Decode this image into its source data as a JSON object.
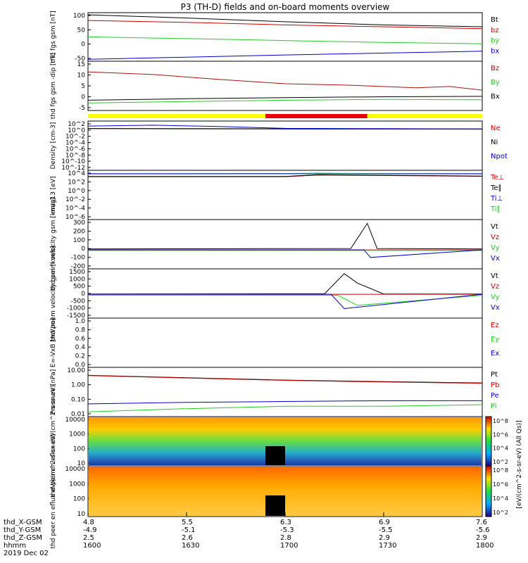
{
  "title": "P3 (TH-D) fields and on-board moments overview",
  "colors": {
    "black": "#000000",
    "red": "#cc0000",
    "green": "#22cc22",
    "blue": "#0000cc",
    "darkred": "#aa1111",
    "yellow": "#ffff00",
    "ok_red": "#ee0000"
  },
  "ephemeris": {
    "labels": [
      "thd_X-GSM",
      "thd_Y-GSM",
      "thd_Z-GSM",
      "hhmm",
      "2019 Dec 02"
    ],
    "columns": [
      {
        "x": "4.8",
        "y": "-4.9",
        "z": "2.5",
        "hhmm": "1600"
      },
      {
        "x": "5.5",
        "y": "-5.1",
        "z": "2.6",
        "hhmm": "1630"
      },
      {
        "x": "6.3",
        "y": "-5.3",
        "z": "2.8",
        "hhmm": "1700"
      },
      {
        "x": "6.9",
        "y": "-5.5",
        "z": "2.9",
        "hhmm": "1730"
      },
      {
        "x": "7.6",
        "y": "-5.6",
        "z": "2.9",
        "hhmm": "1800"
      }
    ]
  },
  "chart_data": [
    {
      "type": "line",
      "ylabel": "thd fgs gsm [nT]",
      "ticks": [
        "100",
        "50",
        "0",
        "-50"
      ],
      "ylim": [
        -50,
        105
      ],
      "series": [
        {
          "name": "Bt",
          "color": "#000000",
          "x": [
            1600,
            1630,
            1700,
            1730,
            1800
          ],
          "y": [
            98,
            88,
            76,
            66,
            60
          ]
        },
        {
          "name": "bz",
          "color": "#cc0000",
          "x": [
            1600,
            1630,
            1700,
            1730,
            1800
          ],
          "y": [
            80,
            74,
            66,
            60,
            54
          ]
        },
        {
          "name": "by",
          "color": "#22cc22",
          "x": [
            1600,
            1630,
            1700,
            1730,
            1800
          ],
          "y": [
            28,
            22,
            16,
            10,
            6
          ]
        },
        {
          "name": "bx",
          "color": "#0000cc",
          "x": [
            1600,
            1630,
            1700,
            1730,
            1800
          ],
          "y": [
            -44,
            -37,
            -30,
            -24,
            -18
          ]
        }
      ]
    },
    {
      "type": "line",
      "ylabel": "thd fgs gsm -dip [nT]",
      "ticks": [
        "15",
        "10",
        "5",
        "0",
        "-5"
      ],
      "ylim": [
        -7,
        16
      ],
      "series": [
        {
          "name": "Bz",
          "color": "#aa1111",
          "x": [
            1600,
            1620,
            1640,
            1700,
            1720,
            1740,
            1750,
            1800
          ],
          "y": [
            11,
            9.8,
            7.5,
            5.5,
            4.8,
            3.6,
            4.2,
            2.5
          ]
        },
        {
          "name": "By",
          "color": "#22cc22",
          "x": [
            1600,
            1630,
            1700,
            1730,
            1800
          ],
          "y": [
            -3.5,
            -2.8,
            -2.2,
            -1.8,
            -2.0
          ]
        },
        {
          "name": "Bx",
          "color": "#000000",
          "x": [
            1600,
            1630,
            1700,
            1730,
            1800
          ],
          "y": [
            -2.2,
            -1.5,
            -1.0,
            -0.6,
            -0.4
          ]
        }
      ]
    },
    {
      "type": "line",
      "ylabel": "Density [cm-3]",
      "ticks": [
        "10^2",
        "10^0",
        "10^-2",
        "10^-4",
        "10^-6",
        "10^-8",
        "10^-10",
        "10^-12"
      ],
      "ylim": [
        -13,
        2.5
      ],
      "series": [
        {
          "name": "Ne",
          "color": "#cc0000",
          "x": [
            1600,
            1630,
            1700,
            1730,
            1800
          ],
          "y": [
            0.1,
            0.05,
            0.0,
            0.0,
            -0.05
          ]
        },
        {
          "name": "Ni",
          "color": "#000000",
          "x": [
            1600,
            1630,
            1700,
            1730,
            1800
          ],
          "y": [
            0.15,
            0.1,
            0.05,
            0.0,
            0.0
          ]
        },
        {
          "name": "Npot",
          "color": "#0000cc",
          "x": [
            1600,
            1620,
            1640,
            1700,
            1730,
            1800
          ],
          "y": [
            0.9,
            1.2,
            0.8,
            0.2,
            0.1,
            0.0
          ]
        }
      ]
    },
    {
      "type": "line",
      "ylabel": "mag13 [eV]",
      "ticks": [
        "10^4",
        "10^2",
        "10^0",
        "10^-2",
        "10^-4",
        "10^-6"
      ],
      "ylim": [
        -7,
        4.5
      ],
      "series": [
        {
          "name": "Te⊥",
          "color": "#cc0000",
          "x": [
            1600,
            1700,
            1710,
            1800
          ],
          "y": [
            3.0,
            3.0,
            3.4,
            3.1
          ]
        },
        {
          "name": "Te∥",
          "color": "#000000",
          "x": [
            1600,
            1700,
            1710,
            1800
          ],
          "y": [
            3.05,
            3.05,
            3.5,
            3.15
          ]
        },
        {
          "name": "Ti⊥",
          "color": "#0000cc",
          "x": [
            1600,
            1700,
            1710,
            1800
          ],
          "y": [
            3.7,
            3.75,
            3.8,
            3.7
          ]
        },
        {
          "name": "Ti∥",
          "color": "#22cc22",
          "x": [
            1600,
            1700,
            1710,
            1800
          ],
          "y": [
            3.6,
            3.65,
            3.7,
            3.6
          ]
        }
      ]
    },
    {
      "type": "line",
      "ylabel": "thd peim velocity gsm [km/s]",
      "ticks": [
        "300",
        "200",
        "100",
        "0",
        "-100",
        "-200"
      ],
      "ylim": [
        -200,
        320
      ],
      "series": [
        {
          "name": "Vt",
          "color": "#000000",
          "x": [
            1600,
            1720,
            1725,
            1728,
            1800
          ],
          "y": [
            10,
            15,
            280,
            15,
            10
          ]
        },
        {
          "name": "Vz",
          "color": "#cc0000",
          "x": [
            1600,
            1800
          ],
          "y": [
            0,
            0
          ]
        },
        {
          "name": "Vy",
          "color": "#22cc22",
          "x": [
            1600,
            1800
          ],
          "y": [
            -5,
            -5
          ]
        },
        {
          "name": "Vx",
          "color": "#0000cc",
          "x": [
            1600,
            1724,
            1726,
            1800
          ],
          "y": [
            0,
            0,
            -80,
            0
          ]
        }
      ]
    },
    {
      "type": "line",
      "ylabel": "thd peem velocity gsm [km/s]",
      "ticks": [
        "1500",
        "1000",
        "500",
        "0",
        "-500",
        "-1000",
        "-1500"
      ],
      "ylim": [
        -1500,
        1600
      ],
      "series": [
        {
          "name": "Vt",
          "color": "#000000",
          "x": [
            1600,
            1712,
            1718,
            1722,
            1730,
            1800
          ],
          "y": [
            20,
            30,
            1300,
            700,
            20,
            20
          ]
        },
        {
          "name": "Vz",
          "color": "#cc0000",
          "x": [
            1600,
            1800
          ],
          "y": [
            0,
            0
          ]
        },
        {
          "name": "Vy",
          "color": "#22cc22",
          "x": [
            1600,
            1716,
            1722,
            1800
          ],
          "y": [
            -60,
            -60,
            -700,
            -60
          ]
        },
        {
          "name": "Vx",
          "color": "#0000cc",
          "x": [
            1600,
            1714,
            1718,
            1800
          ],
          "y": [
            0,
            0,
            -900,
            0
          ]
        }
      ]
    },
    {
      "type": "line",
      "ylabel": "E=-VxB [mV/m]",
      "ticks": [
        "1.0",
        "0.8",
        "0.6",
        "0.4",
        "0.2",
        "0.0"
      ],
      "ylim": [
        0,
        1.0
      ],
      "series": [
        {
          "name": "Ez",
          "color": "#cc0000",
          "x": [],
          "y": []
        },
        {
          "name": "Ey",
          "color": "#22cc22",
          "x": [],
          "y": []
        },
        {
          "name": "Ex",
          "color": "#0000cc",
          "x": [],
          "y": []
        }
      ]
    },
    {
      "type": "line",
      "ylabel": "Pressure [nPa]",
      "ticks": [
        "10.00",
        "1.00",
        "0.10",
        "0.01"
      ],
      "ylim": [
        -2,
        1.1
      ],
      "yscale": "log",
      "series": [
        {
          "name": "Pt",
          "color": "#000000",
          "x": [
            1600,
            1630,
            1700,
            1730,
            1800
          ],
          "y": [
            0.6,
            0.45,
            0.3,
            0.2,
            0.12
          ]
        },
        {
          "name": "Pb",
          "color": "#cc0000",
          "x": [
            1600,
            1630,
            1700,
            1730,
            1800
          ],
          "y": [
            0.58,
            0.43,
            0.28,
            0.18,
            0.1
          ]
        },
        {
          "name": "Pe",
          "color": "#0000cc",
          "x": [
            1600,
            1630,
            1700,
            1730,
            1800
          ],
          "y": [
            -1.2,
            -1.1,
            -1.05,
            -1.0,
            -1.0
          ]
        },
        {
          "name": "Pi",
          "color": "#22cc22",
          "x": [
            1600,
            1630,
            1700,
            1730,
            1800
          ],
          "y": [
            -1.7,
            -1.5,
            -1.35,
            -1.35,
            -1.25
          ]
        }
      ]
    },
    {
      "type": "heatmap",
      "ylabel": "thd peir en eflux eV/(cm^2-s-sr-eV)",
      "ticks": [
        "10000",
        "1000",
        "100",
        "10"
      ],
      "colorbar": {
        "ticks": [
          "10^8",
          "10^6",
          "10^4",
          "10^2"
        ],
        "label": "[eV/(cm^2-s-sr-eV) (All Qs)]"
      }
    },
    {
      "type": "heatmap",
      "ylabel": "thd peer en eflux eV/(cm^2-s-sr-eV)",
      "ticks": [
        "10000",
        "1000",
        "100",
        "10"
      ],
      "colorbar": {
        "ticks": [
          "10^8",
          "10^6",
          "10^4",
          "10^2"
        ],
        "label": "[eV/(cm^2-s-sr-eV) (All Qs)]"
      }
    }
  ]
}
